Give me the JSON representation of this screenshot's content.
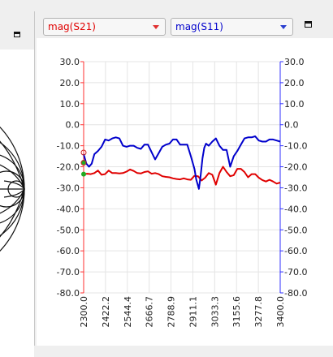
{
  "left_panel": {
    "pane_button_icon": "pane-toggle-icon"
  },
  "trace_selectors": {
    "trace1": {
      "value": "mag(S21)",
      "color": "#e00000"
    },
    "trace2": {
      "value": "mag(S11)",
      "color": "#0000cc"
    }
  },
  "right_panel": {
    "pane_button_icon": "pane-toggle-icon"
  },
  "chart_data": {
    "type": "line",
    "x_ticks": [
      "2300.0",
      "2422.2",
      "2544.4",
      "2666.7",
      "2788.9",
      "2911.1",
      "3033.3",
      "3155.6",
      "3277.8",
      "3400.0"
    ],
    "y_ticks_left": [
      "30.0",
      "20.0",
      "10.0",
      "0.0",
      "-10.0",
      "-20.0",
      "-30.0",
      "-40.0",
      "-50.0",
      "-60.0",
      "-70.0",
      "-80.0"
    ],
    "y_ticks_right": [
      "30.0",
      "20.0",
      "10.0",
      "0.0",
      "-10.0",
      "-20.0",
      "-30.0",
      "-40.0",
      "-50.0",
      "-60.0",
      "-70.0",
      "-80.0"
    ],
    "xlim": [
      2300,
      3400
    ],
    "ylim_left": [
      -80,
      30
    ],
    "ylim_right": [
      -80,
      30
    ],
    "grid": true,
    "series": [
      {
        "name": "mag(S21)",
        "axis": "left",
        "color": "#e00000",
        "x": [
          2300,
          2320,
          2340,
          2360,
          2380,
          2400,
          2420,
          2440,
          2460,
          2480,
          2500,
          2520,
          2540,
          2560,
          2580,
          2600,
          2620,
          2640,
          2660,
          2680,
          2700,
          2720,
          2740,
          2760,
          2780,
          2800,
          2820,
          2840,
          2860,
          2880,
          2900,
          2920,
          2940,
          2960,
          2980,
          3000,
          3020,
          3040,
          3060,
          3080,
          3100,
          3120,
          3140,
          3160,
          3180,
          3200,
          3220,
          3240,
          3260,
          3280,
          3300,
          3320,
          3340,
          3360,
          3380,
          3400
        ],
        "y": [
          -23.5,
          -23.3,
          -23.5,
          -23.0,
          -21.8,
          -23.8,
          -23.5,
          -21.8,
          -23.0,
          -23.0,
          -23.2,
          -23.0,
          -22.3,
          -21.3,
          -22.0,
          -23.0,
          -23.2,
          -22.5,
          -22.2,
          -23.3,
          -23.0,
          -23.5,
          -24.5,
          -24.8,
          -25.0,
          -25.5,
          -25.8,
          -26.0,
          -25.5,
          -26.0,
          -26.2,
          -24.3,
          -24.5,
          -26.5,
          -25.2,
          -23.0,
          -23.8,
          -28.5,
          -23.0,
          -20.0,
          -22.5,
          -24.5,
          -24.0,
          -21.0,
          -21.0,
          -22.5,
          -25.0,
          -23.5,
          -23.5,
          -25.2,
          -26.3,
          -27.0,
          -26.2,
          -27.0,
          -28.0,
          -27.5
        ]
      },
      {
        "name": "mag(S11)",
        "axis": "right",
        "color": "#0000cc",
        "x": [
          2300,
          2315,
          2330,
          2345,
          2360,
          2380,
          2400,
          2420,
          2440,
          2460,
          2480,
          2500,
          2520,
          2540,
          2560,
          2580,
          2600,
          2620,
          2640,
          2660,
          2680,
          2700,
          2720,
          2740,
          2760,
          2780,
          2800,
          2820,
          2840,
          2860,
          2880,
          2900,
          2920,
          2930,
          2945,
          2955,
          2965,
          2975,
          2985,
          3000,
          3020,
          3040,
          3060,
          3080,
          3100,
          3120,
          3140,
          3160,
          3180,
          3200,
          3220,
          3240,
          3260,
          3280,
          3300,
          3320,
          3340,
          3360,
          3380,
          3400
        ],
        "y": [
          -14.0,
          -18.5,
          -20.0,
          -18.5,
          -14.0,
          -12.5,
          -10.5,
          -7.0,
          -7.5,
          -6.5,
          -6.0,
          -6.5,
          -10.0,
          -10.5,
          -10.0,
          -10.0,
          -11.0,
          -11.5,
          -9.5,
          -9.5,
          -13.0,
          -16.5,
          -13.5,
          -10.5,
          -9.5,
          -9.0,
          -7.0,
          -7.0,
          -9.5,
          -9.5,
          -9.5,
          -15.0,
          -21.0,
          -26.0,
          -30.5,
          -24.0,
          -16.0,
          -11.0,
          -9.0,
          -10.0,
          -8.0,
          -6.5,
          -10.0,
          -12.0,
          -12.0,
          -20.0,
          -15.0,
          -12.5,
          -9.5,
          -6.5,
          -6.0,
          -6.0,
          -5.5,
          -7.5,
          -8.0,
          -8.0,
          -7.0,
          -7.0,
          -7.5,
          -8.0
        ]
      }
    ]
  }
}
